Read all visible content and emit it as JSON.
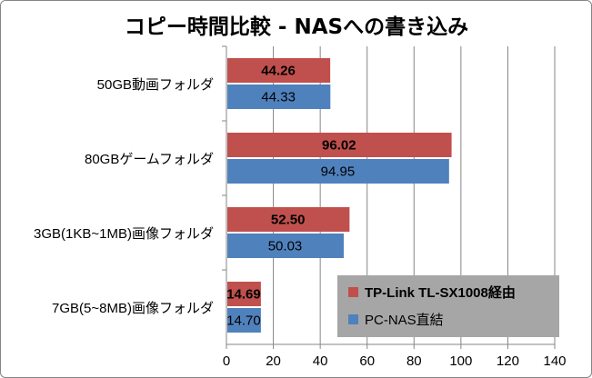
{
  "chart_data": {
    "type": "bar",
    "orientation": "horizontal",
    "title": "コピー時間比較 - NASへの書き込み",
    "xlabel": "",
    "ylabel": "",
    "categories": [
      "50GB動画フォルダ",
      "80GBゲームフォルダ",
      "3GB(1KB~1MB)画像フォルダ",
      "7GB(5~8MB)画像フォルダ"
    ],
    "series": [
      {
        "name": "TP-Link TL-SX1008経由",
        "values": [
          44.26,
          96.02,
          52.5,
          14.69
        ],
        "labels": [
          "44.26",
          "96.02",
          "52.50",
          "14.69"
        ],
        "color": "#C0504D",
        "bold_labels": true
      },
      {
        "name": "PC-NAS直結",
        "values": [
          44.33,
          94.95,
          50.03,
          14.7
        ],
        "labels": [
          "44.33",
          "94.95",
          "50.03",
          "14.70"
        ],
        "color": "#4F81BD",
        "bold_labels": false
      }
    ],
    "xlim": [
      0,
      140
    ],
    "x_ticks": [
      0,
      20,
      40,
      60,
      80,
      100,
      120,
      140
    ],
    "gridlines": "vertical",
    "legend_position": "bottom-right",
    "legend_background": "#A6A6A6"
  }
}
